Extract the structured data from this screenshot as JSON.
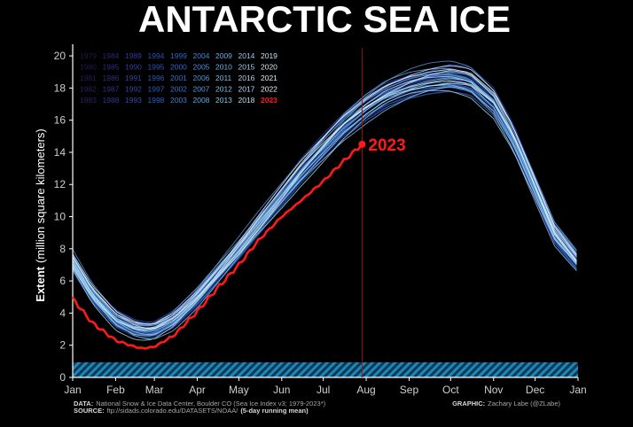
{
  "chart_data": {
    "type": "line",
    "title": "ANTARCTIC SEA ICE",
    "ylabel_bold": "Extent",
    "ylabel_rest": "(million square kilometers)",
    "y_ticks": [
      "0",
      "2",
      "4",
      "6",
      "8",
      "10",
      "12",
      "14",
      "16",
      "18",
      "20"
    ],
    "ylim": [
      0,
      20.5
    ],
    "x_ticks": [
      "Jan",
      "Feb",
      "Mar",
      "Apr",
      "May",
      "Jun",
      "Jul",
      "Aug",
      "Sep",
      "Oct",
      "Nov",
      "Dec",
      "Jan"
    ],
    "xlim_day": [
      1,
      366
    ],
    "grid": false,
    "legend_years": [
      [
        "1979",
        "1984",
        "1989",
        "1994",
        "1999",
        "2004",
        "2009",
        "2014",
        "2019"
      ],
      [
        "1980",
        "1985",
        "1990",
        "1995",
        "2000",
        "2005",
        "2010",
        "2015",
        "2020"
      ],
      [
        "1981",
        "1986",
        "1991",
        "1996",
        "2001",
        "2006",
        "2011",
        "2016",
        "2021"
      ],
      [
        "1982",
        "1987",
        "1992",
        "1997",
        "2002",
        "2007",
        "2012",
        "2017",
        "2022"
      ],
      [
        "1983",
        "1988",
        "1993",
        "1998",
        "2003",
        "2008",
        "2013",
        "2018",
        "2023"
      ]
    ],
    "legend_placement": "top-left",
    "climatology_day": [
      1,
      15,
      32,
      46,
      55,
      60,
      74,
      91,
      105,
      121,
      135,
      152,
      166,
      182,
      196,
      213,
      227,
      244,
      258,
      268,
      274,
      288,
      305,
      319,
      335,
      349,
      365
    ],
    "climatology_extent": [
      7.2,
      5.2,
      3.6,
      3.0,
      2.9,
      2.95,
      3.6,
      5.0,
      6.4,
      8.0,
      9.5,
      11.3,
      12.8,
      14.3,
      15.6,
      16.8,
      17.6,
      18.2,
      18.5,
      18.6,
      18.65,
      18.4,
      17.1,
      15.0,
      11.8,
      9.0,
      7.3
    ],
    "series_2023": {
      "name": "2023",
      "color": "#ff1a1a",
      "day": [
        1,
        15,
        32,
        46,
        52,
        60,
        74,
        91,
        105,
        121,
        135,
        152,
        166,
        182,
        196,
        210
      ],
      "extent": [
        4.9,
        3.4,
        2.3,
        1.9,
        1.8,
        1.9,
        2.6,
        4.1,
        5.5,
        7.0,
        8.5,
        10.0,
        11.0,
        12.2,
        13.4,
        14.5
      ]
    },
    "last_day_2023": 210,
    "annotation": "2023",
    "marker_line_color": "#8b1a1a"
  },
  "footer": {
    "data_label": "DATA:",
    "data_text": "National Snow & Ice Data Center, Boulder CO (Sea Ice Index v3; 1979-2023*)",
    "source_label": "SOURCE:",
    "source_text": "ftp://sidads.colorado.edu/DATASETS/NOAA/",
    "source_note": "(5-day running mean)",
    "graphic_label": "GRAPHIC:",
    "graphic_text": "Zachary Labe (@ZLabe)"
  },
  "colors": {
    "background": "#000000",
    "highlight_2023": "#ff1a1a",
    "zero_band": "#2b9fd0"
  }
}
